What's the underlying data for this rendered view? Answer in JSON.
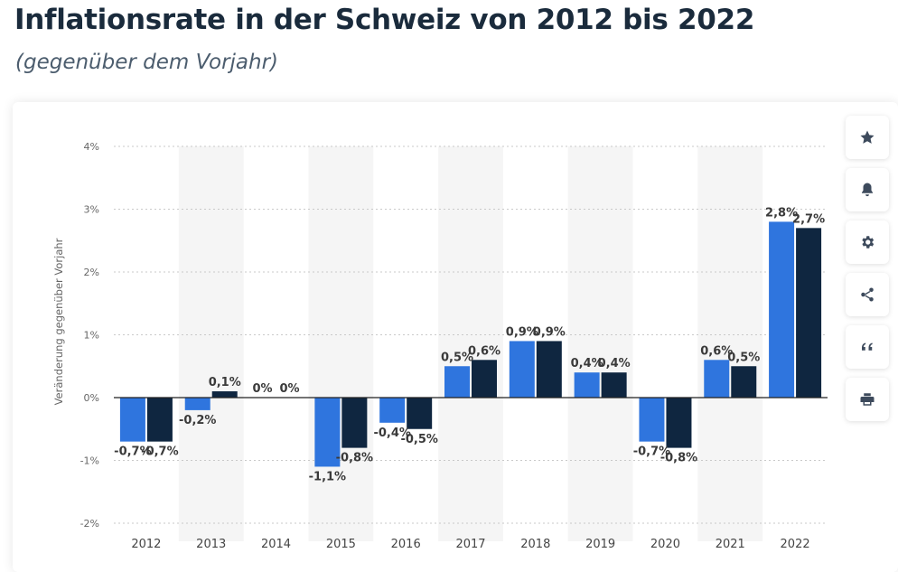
{
  "header": {
    "title": "Inflationsrate in der Schweiz von 2012 bis 2022",
    "subtitle": "(gegenüber dem Vorjahr)"
  },
  "toolbar": {
    "buttons": [
      {
        "name": "favorite",
        "icon": "star-icon"
      },
      {
        "name": "notification",
        "icon": "bell-icon"
      },
      {
        "name": "settings",
        "icon": "gear-icon"
      },
      {
        "name": "share",
        "icon": "share-icon"
      },
      {
        "name": "cite",
        "icon": "quote-icon"
      },
      {
        "name": "print",
        "icon": "printer-icon"
      }
    ]
  },
  "chart_data": {
    "type": "bar",
    "ylabel": "Veränderung gegenüber Vorjahr",
    "xlabel": "",
    "ylim": [
      -2,
      4
    ],
    "yticks": [
      4,
      3,
      2,
      1,
      0,
      -1,
      -2
    ],
    "ytick_labels": [
      "4%",
      "3%",
      "2%",
      "1%",
      "0%",
      "-1%",
      "-2%"
    ],
    "grid": true,
    "categories": [
      "2012",
      "2013",
      "2014",
      "2015",
      "2016",
      "2017",
      "2018",
      "2019",
      "2020",
      "2021",
      "2022"
    ],
    "series": [
      {
        "color": "#2f75de",
        "values": [
          -0.7,
          -0.2,
          0,
          -1.1,
          -0.4,
          0.5,
          0.9,
          0.4,
          -0.7,
          0.6,
          2.8
        ],
        "labels": [
          "-0,7%",
          "-0,2%",
          "0%",
          "-1,1%",
          "-0,4%",
          "0,5%",
          "0,9%",
          "0,4%",
          "-0,7%",
          "0,6%",
          "2,8%"
        ]
      },
      {
        "color": "#0f2640",
        "values": [
          -0.7,
          0.1,
          0,
          -0.8,
          -0.5,
          0.6,
          0.9,
          0.4,
          -0.8,
          0.5,
          2.7
        ],
        "labels": [
          "-0,7%",
          "0,1%",
          "0%",
          "-0,8%",
          "-0,5%",
          "0,6%",
          "0,9%",
          "0,4%",
          "-0,8%",
          "0,5%",
          "2,7%"
        ]
      }
    ],
    "colors": {
      "band": "#f5f5f5",
      "grid": "#c9c9c9",
      "zero_line": "#222222"
    }
  }
}
